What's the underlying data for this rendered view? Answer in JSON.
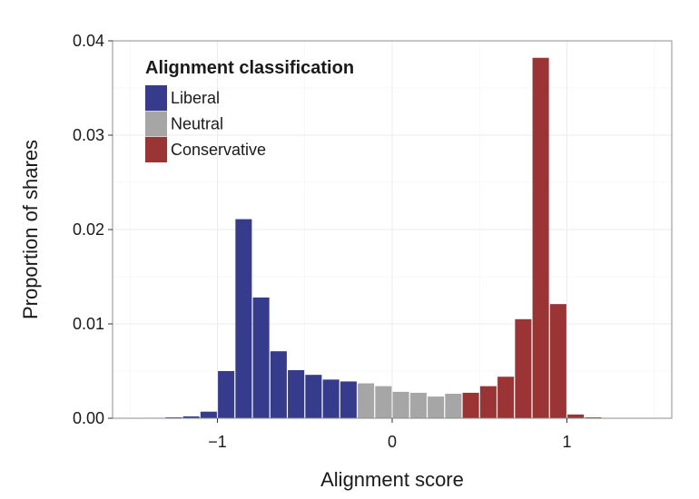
{
  "chart_data": {
    "type": "bar",
    "title": "",
    "xlabel": "Alignment score",
    "ylabel": "Proportion of shares",
    "xlim": [
      -1.6,
      1.6
    ],
    "ylim": [
      0,
      0.04
    ],
    "bin_width": 0.1,
    "x_ticks": [
      {
        "value": -1,
        "label": "−1"
      },
      {
        "value": 0,
        "label": "0"
      },
      {
        "value": 1,
        "label": "1"
      }
    ],
    "y_ticks": [
      {
        "value": 0.0,
        "label": "0.00"
      },
      {
        "value": 0.01,
        "label": "0.01"
      },
      {
        "value": 0.02,
        "label": "0.02"
      },
      {
        "value": 0.03,
        "label": "0.03"
      },
      {
        "value": 0.04,
        "label": "0.04"
      }
    ],
    "grid": true,
    "legend": {
      "title": "Alignment classification",
      "position": "top-left",
      "entries": [
        {
          "name": "Liberal",
          "color": "#363b8c"
        },
        {
          "name": "Neutral",
          "color": "#a6a6a6"
        },
        {
          "name": "Conservative",
          "color": "#9b3434"
        }
      ]
    },
    "series": [
      {
        "name": "Liberal",
        "color": "#363b8c",
        "x": [
          -1.35,
          -1.25,
          -1.15,
          -1.05,
          -0.95,
          -0.85,
          -0.75,
          -0.65,
          -0.55,
          -0.45,
          -0.35,
          -0.25
        ],
        "values": [
          5e-05,
          0.0001,
          0.0002,
          0.0007,
          0.005,
          0.0211,
          0.0128,
          0.0071,
          0.0051,
          0.0046,
          0.0041,
          0.0039
        ]
      },
      {
        "name": "Neutral",
        "color": "#a6a6a6",
        "x": [
          -0.15,
          -0.05,
          0.05,
          0.15,
          0.25,
          0.35
        ],
        "values": [
          0.0037,
          0.0034,
          0.0028,
          0.0027,
          0.0023,
          0.0026
        ]
      },
      {
        "name": "Conservative",
        "color": "#9b3434",
        "x": [
          0.45,
          0.55,
          0.65,
          0.75,
          0.85,
          0.95,
          1.05,
          1.15,
          1.25
        ],
        "values": [
          0.0027,
          0.0034,
          0.0044,
          0.0105,
          0.0382,
          0.0121,
          0.0004,
          0.0001,
          3e-05
        ]
      }
    ]
  }
}
